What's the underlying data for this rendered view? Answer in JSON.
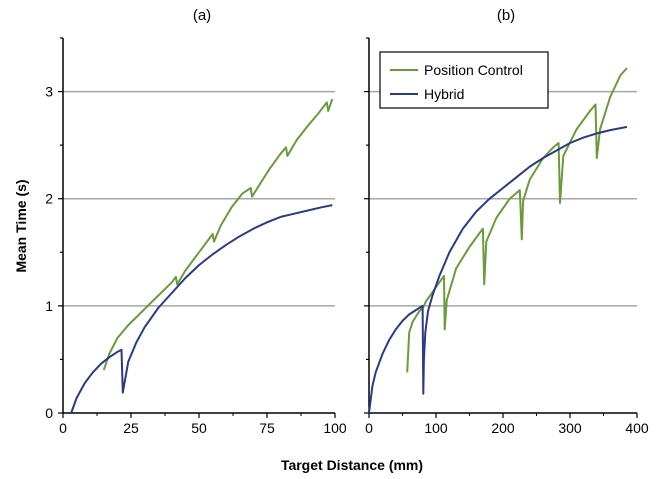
{
  "colors": {
    "position_control": "#6a9a3c",
    "hybrid": "#2b3a85",
    "grid": "#a6a6a6"
  },
  "chart_data": [
    {
      "type": "line",
      "title": "(a)",
      "ylabel": "Mean Time (s)",
      "xlim": [
        0,
        100
      ],
      "ylim": [
        0,
        3.5
      ],
      "xticks": [
        "0",
        "25",
        "50",
        "75",
        "100"
      ],
      "yticks": [
        "0",
        "1",
        "2",
        "3"
      ],
      "grid": "horizontal",
      "series": [
        {
          "name": "Position Control",
          "color": "#6a9a3c",
          "x": [
            15,
            17,
            20,
            24,
            28,
            32,
            36,
            40,
            41.5,
            42,
            45,
            50,
            55,
            55.5,
            58,
            62,
            66,
            69,
            69.5,
            72,
            76,
            80,
            82,
            82.5,
            86,
            90,
            94,
            97,
            97.5,
            99
          ],
          "y": [
            0.4,
            0.55,
            0.7,
            0.82,
            0.92,
            1.02,
            1.12,
            1.22,
            1.27,
            1.2,
            1.33,
            1.5,
            1.67,
            1.6,
            1.75,
            1.92,
            2.05,
            2.1,
            2.02,
            2.12,
            2.28,
            2.42,
            2.48,
            2.4,
            2.55,
            2.68,
            2.8,
            2.9,
            2.82,
            2.93
          ]
        },
        {
          "name": "Hybrid",
          "color": "#2b3a85",
          "x": [
            3,
            5,
            8,
            11,
            14,
            17,
            20,
            21.5,
            22,
            24,
            27,
            30,
            35,
            40,
            45,
            50,
            55,
            60,
            65,
            70,
            75,
            80,
            85,
            90,
            95,
            99
          ],
          "y": [
            0.0,
            0.14,
            0.28,
            0.38,
            0.46,
            0.52,
            0.57,
            0.59,
            0.19,
            0.48,
            0.66,
            0.8,
            0.98,
            1.12,
            1.26,
            1.38,
            1.48,
            1.57,
            1.65,
            1.72,
            1.78,
            1.83,
            1.86,
            1.89,
            1.92,
            1.94
          ]
        }
      ]
    },
    {
      "type": "line",
      "title": "(b)",
      "xlim": [
        0,
        400
      ],
      "ylim": [
        0,
        3.5
      ],
      "xticks": [
        "0",
        "100",
        "200",
        "300",
        "400"
      ],
      "grid": "horizontal",
      "legend": "top-left",
      "series": [
        {
          "name": "Position Control",
          "color": "#6a9a3c",
          "x": [
            57,
            60,
            65,
            70,
            75,
            80,
            82,
            85,
            95,
            105,
            112,
            113,
            116,
            130,
            150,
            165,
            170,
            172,
            175,
            190,
            210,
            225,
            228,
            230,
            240,
            260,
            275,
            283,
            285,
            290,
            310,
            330,
            338,
            340,
            345,
            360,
            375,
            385
          ],
          "y": [
            0.38,
            0.75,
            0.85,
            0.9,
            0.95,
            0.98,
            1.0,
            1.04,
            1.13,
            1.22,
            1.28,
            0.78,
            1.05,
            1.35,
            1.55,
            1.68,
            1.72,
            1.2,
            1.6,
            1.82,
            2.0,
            2.08,
            1.62,
            1.98,
            2.18,
            2.38,
            2.48,
            2.52,
            1.96,
            2.4,
            2.65,
            2.82,
            2.88,
            2.38,
            2.65,
            2.95,
            3.15,
            3.22
          ]
        },
        {
          "name": "Hybrid",
          "color": "#2b3a85",
          "x": [
            0,
            5,
            10,
            20,
            30,
            40,
            50,
            60,
            70,
            80,
            81,
            82,
            84,
            88,
            95,
            105,
            120,
            140,
            160,
            180,
            200,
            220,
            240,
            260,
            280,
            300,
            320,
            340,
            360,
            385
          ],
          "y": [
            0.0,
            0.25,
            0.38,
            0.55,
            0.68,
            0.78,
            0.86,
            0.92,
            0.96,
            1.0,
            0.18,
            0.5,
            0.75,
            0.95,
            1.1,
            1.28,
            1.5,
            1.72,
            1.88,
            2.0,
            2.1,
            2.2,
            2.3,
            2.38,
            2.45,
            2.52,
            2.57,
            2.61,
            2.64,
            2.67
          ]
        }
      ]
    }
  ],
  "shared": {
    "ylabel": "Mean Time (s)",
    "xlabel": "Target Distance (mm)"
  }
}
